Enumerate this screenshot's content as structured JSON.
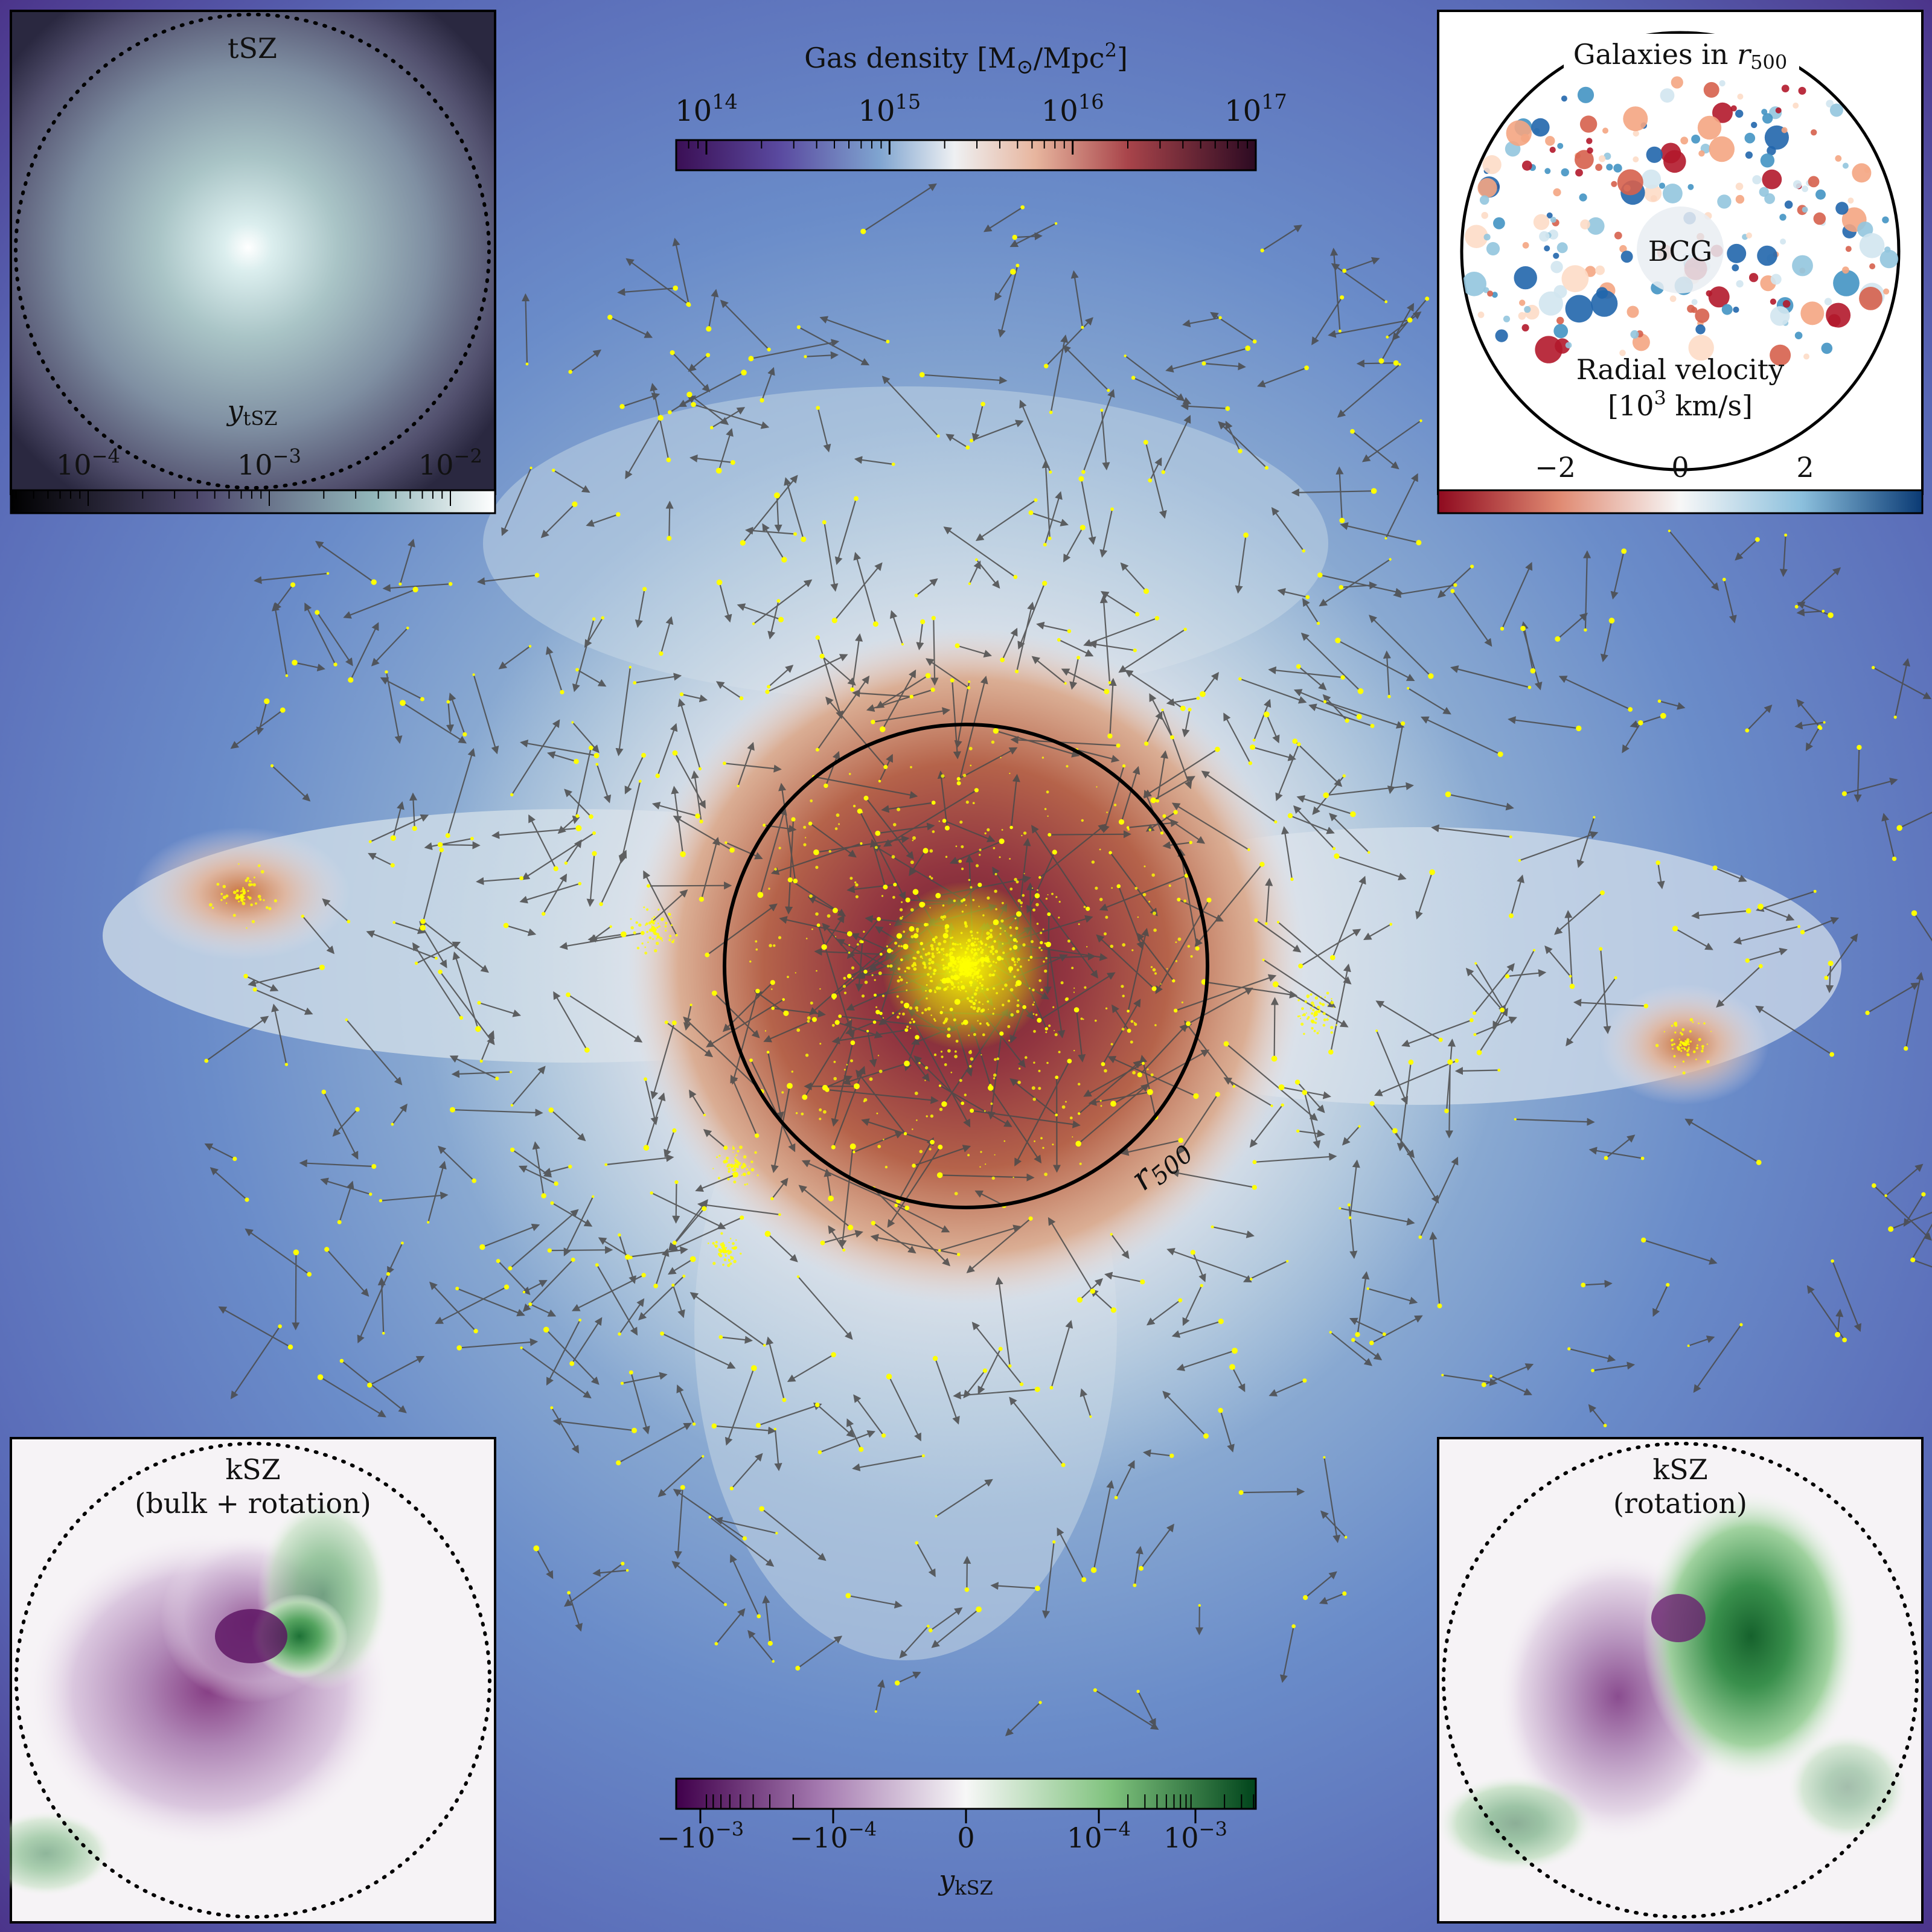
{
  "main": {
    "colorbar_title": "Gas density [M",
    "colorbar_title_sub": "⊙",
    "colorbar_title_end": "/Mpc",
    "colorbar_title_sup": "2",
    "colorbar_title_close": "]",
    "ticks": [
      {
        "base": "10",
        "exp": "14",
        "value": 14
      },
      {
        "base": "10",
        "exp": "15",
        "value": 15
      },
      {
        "base": "10",
        "exp": "16",
        "value": 16
      },
      {
        "base": "10",
        "exp": "17",
        "value": 17
      }
    ],
    "r500_label": "r",
    "r500_sub": "500",
    "colors": {
      "low": "#3b0f55",
      "mid": "#f2e6ea",
      "high": "#4a0f28",
      "galaxy": "#ffff00",
      "arrow": "#444444"
    }
  },
  "tsz": {
    "title": "tSZ",
    "axis_label": "y",
    "axis_sub": "tSZ",
    "ticks": [
      {
        "base": "10",
        "exp": "−4"
      },
      {
        "base": "10",
        "exp": "−3"
      },
      {
        "base": "10",
        "exp": "−2"
      }
    ]
  },
  "galaxies": {
    "title": "Galaxies in ",
    "title_var": "r",
    "title_sub": "500",
    "center_label": "BCG",
    "axis_label_1": "Radial velocity",
    "axis_label_2_open": "[10",
    "axis_label_2_sup": "3",
    "axis_label_2_close": " km/s]",
    "ticks": [
      "−2",
      "0",
      "2"
    ],
    "colors": {
      "neg": "#b2182b",
      "zero": "#f7f7f7",
      "pos": "#2166ac"
    }
  },
  "ksz_bulk": {
    "title_1": "kSZ",
    "title_2": "(bulk + rotation)"
  },
  "ksz_rot": {
    "title_1": "kSZ",
    "title_2": "(rotation)"
  },
  "ksz_colorbar": {
    "axis_label": "y",
    "axis_sub": "kSZ",
    "ticks": [
      {
        "sign": "−",
        "base": "10",
        "exp": "−3"
      },
      {
        "sign": "−",
        "base": "10",
        "exp": "−4"
      },
      {
        "sign": "",
        "base": "0",
        "exp": ""
      },
      {
        "sign": "",
        "base": "10",
        "exp": "−4"
      },
      {
        "sign": "",
        "base": "10",
        "exp": "−3"
      }
    ],
    "colors": {
      "neg": "#40004b",
      "zero": "#f7f7f7",
      "pos": "#00441b"
    }
  }
}
